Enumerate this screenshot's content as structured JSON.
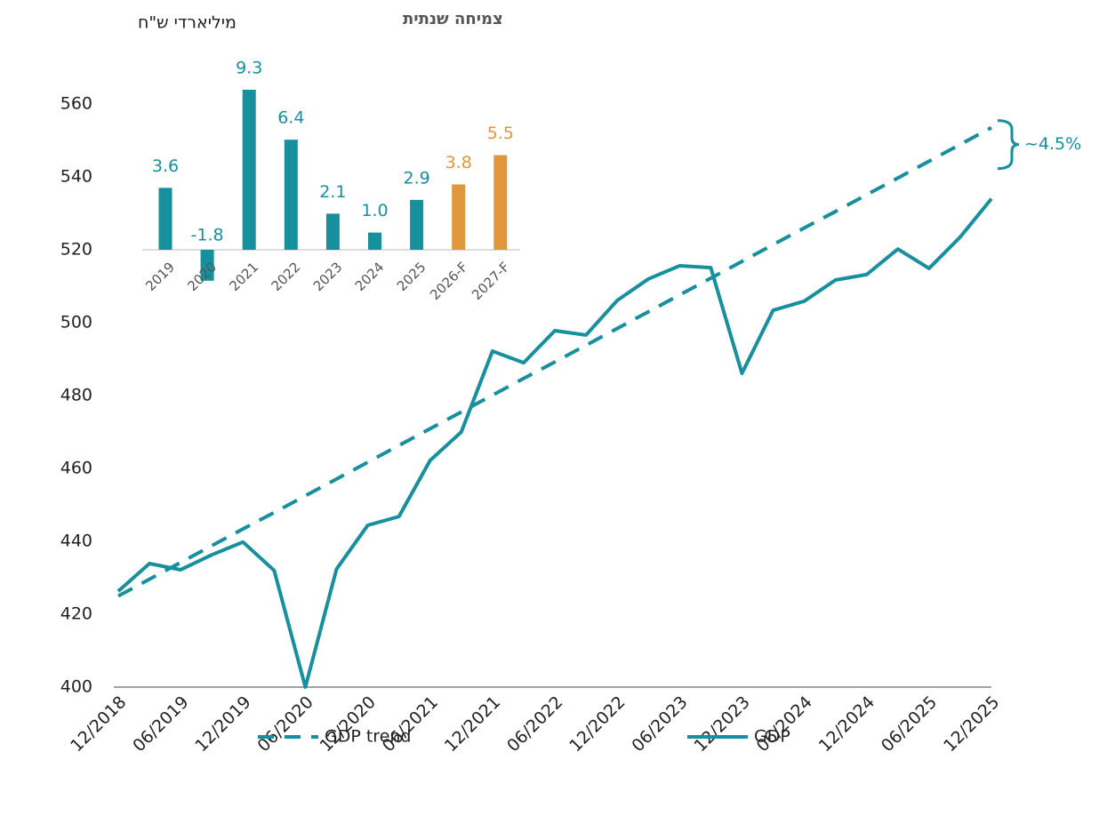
{
  "chart_data": [
    {
      "type": "line",
      "y_label": "מיליארדי ש\"ח",
      "categories": [
        "12/2018",
        null,
        "06/2019",
        null,
        "12/2019",
        null,
        "06/2020",
        null,
        "12/2020",
        null,
        "06/2021",
        null,
        "12/2021",
        null,
        "06/2022",
        null,
        "12/2022",
        null,
        "06/2023",
        null,
        "12/2023",
        null,
        "06/2024",
        null,
        "12/2024",
        null,
        "06/2025",
        null,
        "12/2025"
      ],
      "series": [
        {
          "name": "GDP trend",
          "color": "#17909e",
          "dashed": true,
          "values": [
            425,
            429.6,
            434.2,
            438.8,
            443.4,
            447.9,
            452.5,
            457.1,
            461.7,
            466.3,
            470.9,
            475.5,
            480.1,
            484.7,
            489.2,
            493.8,
            498.4,
            503.0,
            507.6,
            512.2,
            516.8,
            521.4,
            526.0,
            530.5,
            535.1,
            539.7,
            544.3,
            548.9,
            553.5
          ]
        },
        {
          "name": "GDP",
          "color": "#17909e",
          "dashed": false,
          "values": [
            426.3,
            433.9,
            432.2,
            436.3,
            439.8,
            432,
            400,
            432.4,
            444.4,
            446.8,
            462.2,
            470,
            492.2,
            489,
            497.8,
            496.6,
            506.1,
            512,
            515.6,
            515.1,
            486.1,
            503.4,
            505.9,
            511.7,
            513.2,
            520.2,
            514.9,
            523.5,
            534
          ]
        }
      ],
      "annotation": "~4.5%",
      "ylim": [
        400,
        560
      ],
      "yticks": [
        400,
        420,
        440,
        460,
        480,
        500,
        520,
        540,
        560
      ]
    },
    {
      "type": "bar",
      "title": "צמיחה שנתית",
      "categories": [
        "2019",
        "2020",
        "2021",
        "2022",
        "2023",
        "2024",
        "2025",
        "2026-F",
        "2027-F"
      ],
      "values": [
        3.6,
        -1.8,
        9.3,
        6.4,
        2.1,
        1.0,
        2.9,
        3.8,
        5.5
      ],
      "value_labels": [
        "3.6",
        "-1.8",
        "9.3",
        "6.4",
        "2.1",
        "1.0",
        "2.9",
        "3.8",
        "5.5"
      ],
      "colors": [
        "#17909e",
        "#17909e",
        "#17909e",
        "#17909e",
        "#17909e",
        "#17909e",
        "#17909e",
        "#e0963a",
        "#e0963a"
      ]
    }
  ]
}
